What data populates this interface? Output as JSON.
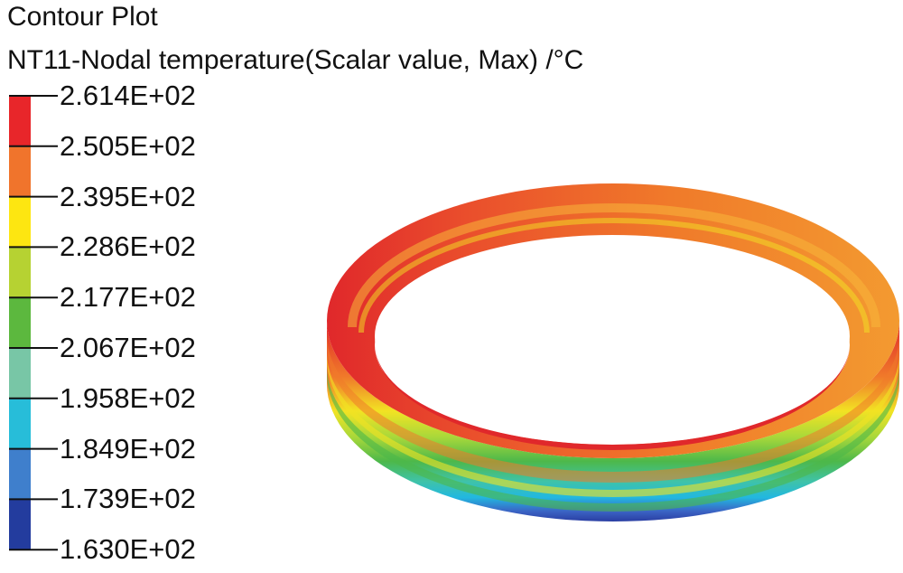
{
  "title": "Contour Plot",
  "subtitle": "NT11-Nodal temperature(Scalar value, Max) /°C",
  "legend": {
    "tick_labels": [
      "2.614E+02",
      "2.505E+02",
      "2.395E+02",
      "2.286E+02",
      "2.177E+02",
      "2.067E+02",
      "1.958E+02",
      "1.849E+02",
      "1.739E+02",
      "1.630E+02"
    ],
    "band_colors": [
      "#e8262a",
      "#f0742c",
      "#fde611",
      "#b6d232",
      "#5cb83e",
      "#78c6a6",
      "#27bdd9",
      "#3f7fcc",
      "#233c9e"
    ]
  },
  "ring_colors": {
    "hot": "#e0282b",
    "orange": "#f07a2a",
    "yellow": "#f2e323",
    "lime": "#a8d83a",
    "green": "#4db84a",
    "teal": "#3fc3a8",
    "cyan": "#22b8e0",
    "blue": "#3b63c4",
    "navy": "#2a3ea2"
  }
}
